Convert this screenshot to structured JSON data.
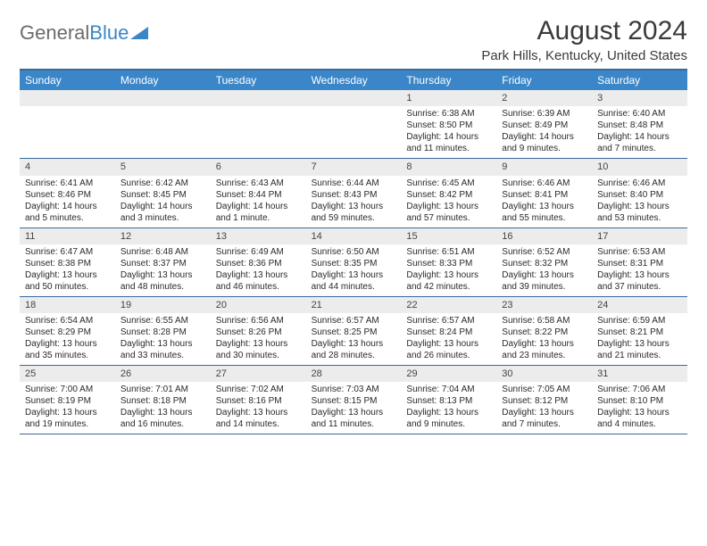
{
  "logo": {
    "text1": "General",
    "text2": "Blue"
  },
  "title": "August 2024",
  "subtitle": "Park Hills, Kentucky, United States",
  "colors": {
    "header_bg": "#3a86c8",
    "header_text": "#ffffff",
    "border": "#3a6a9a",
    "daynum_bg": "#ececec",
    "logo_gray": "#6b6b6b",
    "logo_blue": "#3a86c8",
    "text": "#2a2a2a"
  },
  "day_names": [
    "Sunday",
    "Monday",
    "Tuesday",
    "Wednesday",
    "Thursday",
    "Friday",
    "Saturday"
  ],
  "weeks": [
    [
      {
        "n": "",
        "sr": "",
        "ss": "",
        "dl": ""
      },
      {
        "n": "",
        "sr": "",
        "ss": "",
        "dl": ""
      },
      {
        "n": "",
        "sr": "",
        "ss": "",
        "dl": ""
      },
      {
        "n": "",
        "sr": "",
        "ss": "",
        "dl": ""
      },
      {
        "n": "1",
        "sr": "Sunrise: 6:38 AM",
        "ss": "Sunset: 8:50 PM",
        "dl": "Daylight: 14 hours and 11 minutes."
      },
      {
        "n": "2",
        "sr": "Sunrise: 6:39 AM",
        "ss": "Sunset: 8:49 PM",
        "dl": "Daylight: 14 hours and 9 minutes."
      },
      {
        "n": "3",
        "sr": "Sunrise: 6:40 AM",
        "ss": "Sunset: 8:48 PM",
        "dl": "Daylight: 14 hours and 7 minutes."
      }
    ],
    [
      {
        "n": "4",
        "sr": "Sunrise: 6:41 AM",
        "ss": "Sunset: 8:46 PM",
        "dl": "Daylight: 14 hours and 5 minutes."
      },
      {
        "n": "5",
        "sr": "Sunrise: 6:42 AM",
        "ss": "Sunset: 8:45 PM",
        "dl": "Daylight: 14 hours and 3 minutes."
      },
      {
        "n": "6",
        "sr": "Sunrise: 6:43 AM",
        "ss": "Sunset: 8:44 PM",
        "dl": "Daylight: 14 hours and 1 minute."
      },
      {
        "n": "7",
        "sr": "Sunrise: 6:44 AM",
        "ss": "Sunset: 8:43 PM",
        "dl": "Daylight: 13 hours and 59 minutes."
      },
      {
        "n": "8",
        "sr": "Sunrise: 6:45 AM",
        "ss": "Sunset: 8:42 PM",
        "dl": "Daylight: 13 hours and 57 minutes."
      },
      {
        "n": "9",
        "sr": "Sunrise: 6:46 AM",
        "ss": "Sunset: 8:41 PM",
        "dl": "Daylight: 13 hours and 55 minutes."
      },
      {
        "n": "10",
        "sr": "Sunrise: 6:46 AM",
        "ss": "Sunset: 8:40 PM",
        "dl": "Daylight: 13 hours and 53 minutes."
      }
    ],
    [
      {
        "n": "11",
        "sr": "Sunrise: 6:47 AM",
        "ss": "Sunset: 8:38 PM",
        "dl": "Daylight: 13 hours and 50 minutes."
      },
      {
        "n": "12",
        "sr": "Sunrise: 6:48 AM",
        "ss": "Sunset: 8:37 PM",
        "dl": "Daylight: 13 hours and 48 minutes."
      },
      {
        "n": "13",
        "sr": "Sunrise: 6:49 AM",
        "ss": "Sunset: 8:36 PM",
        "dl": "Daylight: 13 hours and 46 minutes."
      },
      {
        "n": "14",
        "sr": "Sunrise: 6:50 AM",
        "ss": "Sunset: 8:35 PM",
        "dl": "Daylight: 13 hours and 44 minutes."
      },
      {
        "n": "15",
        "sr": "Sunrise: 6:51 AM",
        "ss": "Sunset: 8:33 PM",
        "dl": "Daylight: 13 hours and 42 minutes."
      },
      {
        "n": "16",
        "sr": "Sunrise: 6:52 AM",
        "ss": "Sunset: 8:32 PM",
        "dl": "Daylight: 13 hours and 39 minutes."
      },
      {
        "n": "17",
        "sr": "Sunrise: 6:53 AM",
        "ss": "Sunset: 8:31 PM",
        "dl": "Daylight: 13 hours and 37 minutes."
      }
    ],
    [
      {
        "n": "18",
        "sr": "Sunrise: 6:54 AM",
        "ss": "Sunset: 8:29 PM",
        "dl": "Daylight: 13 hours and 35 minutes."
      },
      {
        "n": "19",
        "sr": "Sunrise: 6:55 AM",
        "ss": "Sunset: 8:28 PM",
        "dl": "Daylight: 13 hours and 33 minutes."
      },
      {
        "n": "20",
        "sr": "Sunrise: 6:56 AM",
        "ss": "Sunset: 8:26 PM",
        "dl": "Daylight: 13 hours and 30 minutes."
      },
      {
        "n": "21",
        "sr": "Sunrise: 6:57 AM",
        "ss": "Sunset: 8:25 PM",
        "dl": "Daylight: 13 hours and 28 minutes."
      },
      {
        "n": "22",
        "sr": "Sunrise: 6:57 AM",
        "ss": "Sunset: 8:24 PM",
        "dl": "Daylight: 13 hours and 26 minutes."
      },
      {
        "n": "23",
        "sr": "Sunrise: 6:58 AM",
        "ss": "Sunset: 8:22 PM",
        "dl": "Daylight: 13 hours and 23 minutes."
      },
      {
        "n": "24",
        "sr": "Sunrise: 6:59 AM",
        "ss": "Sunset: 8:21 PM",
        "dl": "Daylight: 13 hours and 21 minutes."
      }
    ],
    [
      {
        "n": "25",
        "sr": "Sunrise: 7:00 AM",
        "ss": "Sunset: 8:19 PM",
        "dl": "Daylight: 13 hours and 19 minutes."
      },
      {
        "n": "26",
        "sr": "Sunrise: 7:01 AM",
        "ss": "Sunset: 8:18 PM",
        "dl": "Daylight: 13 hours and 16 minutes."
      },
      {
        "n": "27",
        "sr": "Sunrise: 7:02 AM",
        "ss": "Sunset: 8:16 PM",
        "dl": "Daylight: 13 hours and 14 minutes."
      },
      {
        "n": "28",
        "sr": "Sunrise: 7:03 AM",
        "ss": "Sunset: 8:15 PM",
        "dl": "Daylight: 13 hours and 11 minutes."
      },
      {
        "n": "29",
        "sr": "Sunrise: 7:04 AM",
        "ss": "Sunset: 8:13 PM",
        "dl": "Daylight: 13 hours and 9 minutes."
      },
      {
        "n": "30",
        "sr": "Sunrise: 7:05 AM",
        "ss": "Sunset: 8:12 PM",
        "dl": "Daylight: 13 hours and 7 minutes."
      },
      {
        "n": "31",
        "sr": "Sunrise: 7:06 AM",
        "ss": "Sunset: 8:10 PM",
        "dl": "Daylight: 13 hours and 4 minutes."
      }
    ]
  ]
}
